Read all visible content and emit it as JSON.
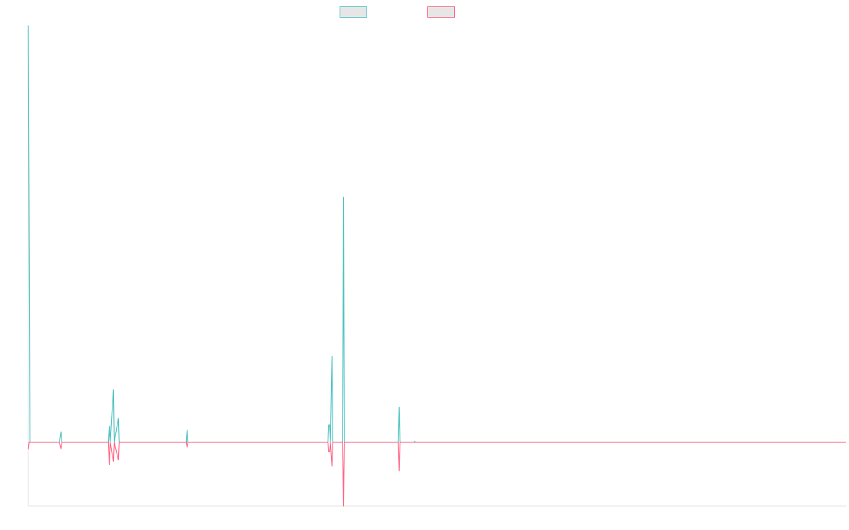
{
  "chart_data": {
    "type": "line",
    "title": "",
    "xlabel": "",
    "ylabel": "",
    "x_count": 1000,
    "zero_line": true,
    "grid": false,
    "legend_position": "top-center",
    "ylim": [
      -20,
      131
    ],
    "series": [
      {
        "name": "",
        "color": "#4bc0c0",
        "fill": "#e6e6e6",
        "baseline": 0,
        "points": [
          [
            0,
            131
          ],
          [
            2,
            0
          ],
          [
            38,
            0
          ],
          [
            40,
            3.3
          ],
          [
            41,
            0
          ],
          [
            98,
            0
          ],
          [
            99,
            5
          ],
          [
            100,
            0
          ],
          [
            104,
            16.5
          ],
          [
            105,
            0
          ],
          [
            110,
            7.5
          ],
          [
            111,
            0
          ],
          [
            193,
            0
          ],
          [
            194,
            3.8
          ],
          [
            195,
            0
          ],
          [
            366,
            0
          ],
          [
            367,
            5.5
          ],
          [
            368,
            5.5
          ],
          [
            369,
            0
          ],
          [
            371,
            27
          ],
          [
            372,
            0
          ],
          [
            384,
            0
          ],
          [
            385,
            77
          ],
          [
            386,
            0
          ],
          [
            452,
            0
          ],
          [
            453,
            11
          ],
          [
            454,
            0
          ],
          [
            471,
            0
          ],
          [
            472,
            0.3
          ],
          [
            473,
            0
          ],
          [
            999,
            0
          ]
        ]
      },
      {
        "name": "",
        "color": "#ff6384",
        "fill": "#e6e6e6",
        "baseline": 0,
        "points": [
          [
            0,
            -2.2
          ],
          [
            1,
            0
          ],
          [
            38,
            0
          ],
          [
            40,
            -2
          ],
          [
            41,
            0
          ],
          [
            98,
            0
          ],
          [
            99,
            -7
          ],
          [
            100,
            0
          ],
          [
            104,
            -6
          ],
          [
            105,
            0
          ],
          [
            110,
            -5.5
          ],
          [
            111,
            0
          ],
          [
            193,
            0
          ],
          [
            194,
            -1.5
          ],
          [
            195,
            0
          ],
          [
            366,
            0
          ],
          [
            367,
            -3
          ],
          [
            368,
            -3
          ],
          [
            369,
            0
          ],
          [
            371,
            -7.5
          ],
          [
            372,
            0
          ],
          [
            384,
            0
          ],
          [
            385,
            -20
          ],
          [
            386,
            0
          ],
          [
            452,
            0
          ],
          [
            453,
            -9
          ],
          [
            454,
            0
          ],
          [
            999,
            0
          ]
        ]
      }
    ]
  }
}
